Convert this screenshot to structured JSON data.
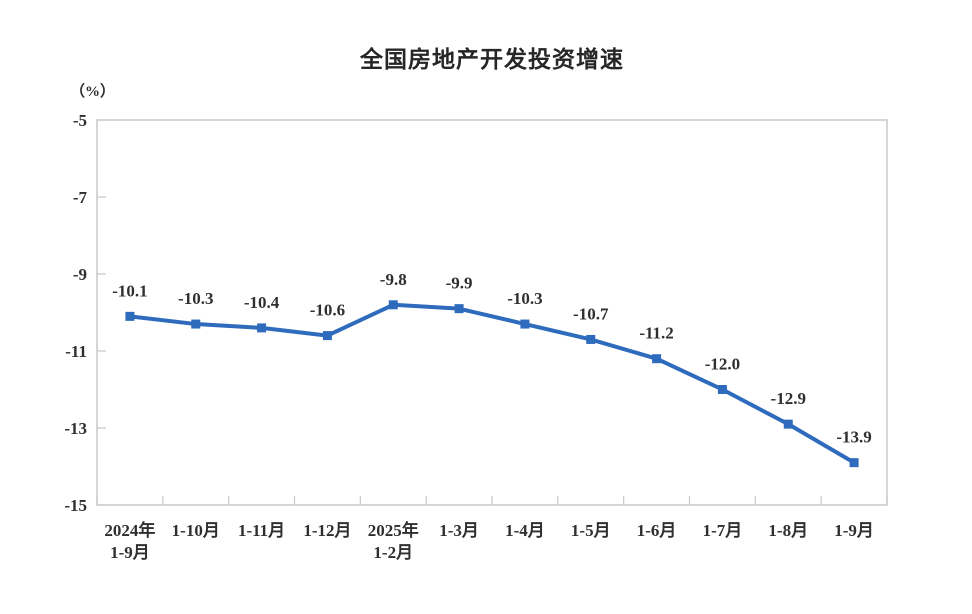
{
  "page": {
    "background_color": "#ffffff"
  },
  "chart_data": {
    "type": "line",
    "title": "全国房地产开发投资增速",
    "unit_label": "（%）",
    "categories": [
      "2024年\n1-9月",
      "1-10月",
      "1-11月",
      "1-12月",
      "2025年\n1-2月",
      "1-3月",
      "1-4月",
      "1-5月",
      "1-6月",
      "1-7月",
      "1-8月",
      "1-9月"
    ],
    "values": [
      -10.1,
      -10.3,
      -10.4,
      -10.6,
      -9.8,
      -9.9,
      -10.3,
      -10.7,
      -11.2,
      -12.0,
      -12.9,
      -13.9
    ],
    "data_labels": [
      "-10.1",
      "-10.3",
      "-10.4",
      "-10.6",
      "-9.8",
      "-9.9",
      "-10.3",
      "-10.7",
      "-11.2",
      "-12.0",
      "-12.9",
      "-13.9"
    ],
    "y_ticks": [
      -5,
      -7,
      -9,
      -11,
      -13,
      -15
    ],
    "ylim": [
      -15,
      -5
    ],
    "xlabel": "",
    "ylabel": "（%）",
    "grid": false,
    "legend": "none",
    "marker": "square",
    "line_color": "#2e6bbc",
    "axis_color": "#c9c9c9",
    "text_color": "#2f2f2f"
  }
}
